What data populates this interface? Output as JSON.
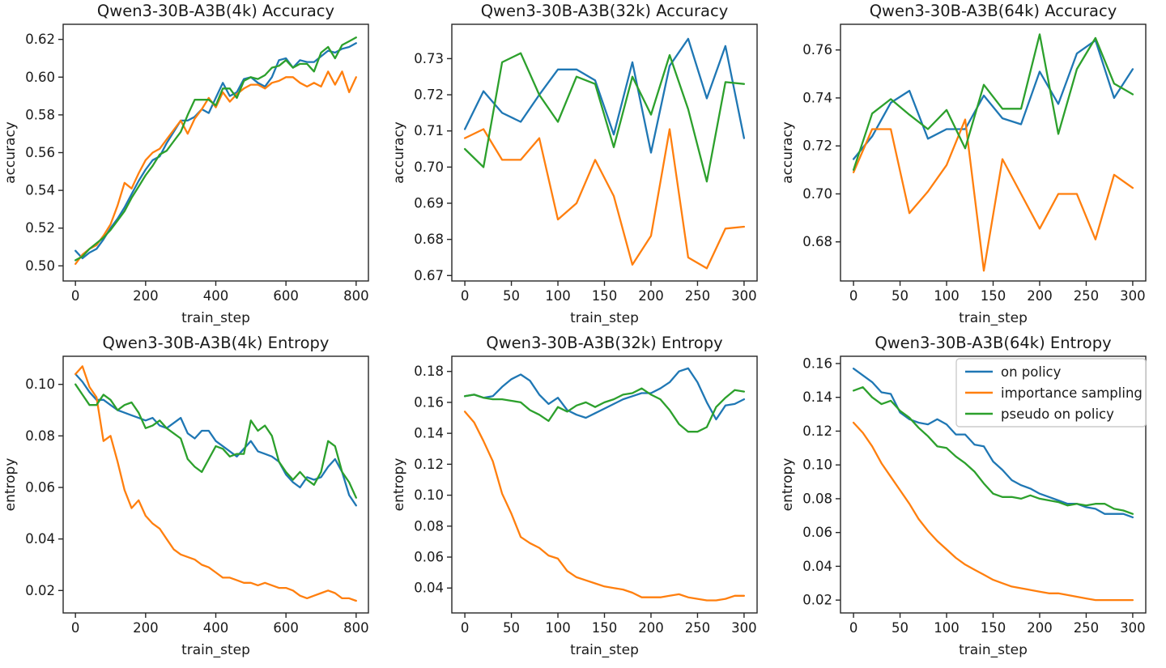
{
  "figure": {
    "background": "#ffffff",
    "text_color": "#1a1a1a",
    "series_colors": {
      "on_policy": "#1f77b4",
      "importance_sampling": "#ff7f0e",
      "pseudo_on_policy": "#2ca02c"
    },
    "legend": {
      "position": "upper-right-of-entropy-64k",
      "items": [
        {
          "label": "on policy",
          "color": "#1f77b4"
        },
        {
          "label": "importance sampling",
          "color": "#ff7f0e"
        },
        {
          "label": "pseudo on policy",
          "color": "#2ca02c"
        }
      ]
    }
  },
  "chart_data": [
    {
      "id": "acc-4k",
      "type": "line",
      "title": "Qwen3-30B-A3B(4k) Accuracy",
      "xlabel": "train_step",
      "ylabel": "accuracy",
      "xlim": [
        -35,
        835
      ],
      "ylim": [
        0.492,
        0.628
      ],
      "xticks": [
        0,
        200,
        400,
        600,
        800
      ],
      "xtick_labels": [
        "0",
        "200",
        "400",
        "600",
        "800"
      ],
      "yticks": [
        0.5,
        0.52,
        0.54,
        0.56,
        0.58,
        0.6,
        0.62
      ],
      "ytick_labels": [
        "0.50",
        "0.52",
        "0.54",
        "0.56",
        "0.58",
        "0.60",
        "0.62"
      ],
      "grid": false,
      "legend": false,
      "x": [
        0,
        20,
        40,
        60,
        80,
        100,
        120,
        140,
        160,
        180,
        200,
        220,
        240,
        260,
        280,
        300,
        320,
        340,
        360,
        380,
        400,
        420,
        440,
        460,
        480,
        500,
        520,
        540,
        560,
        580,
        600,
        620,
        640,
        660,
        680,
        700,
        720,
        740,
        760,
        780,
        800
      ],
      "series": [
        {
          "name": "on policy",
          "color": "#1f77b4",
          "y": [
            0.508,
            0.504,
            0.507,
            0.509,
            0.514,
            0.52,
            0.525,
            0.531,
            0.538,
            0.545,
            0.551,
            0.556,
            0.558,
            0.565,
            0.571,
            0.577,
            0.577,
            0.579,
            0.583,
            0.581,
            0.589,
            0.597,
            0.59,
            0.592,
            0.599,
            0.6,
            0.597,
            0.595,
            0.6,
            0.609,
            0.61,
            0.605,
            0.609,
            0.608,
            0.608,
            0.611,
            0.614,
            0.613,
            0.615,
            0.616,
            0.618
          ]
        },
        {
          "name": "importance sampling",
          "color": "#ff7f0e",
          "y": [
            0.501,
            0.506,
            0.509,
            0.511,
            0.516,
            0.522,
            0.532,
            0.544,
            0.541,
            0.549,
            0.556,
            0.56,
            0.562,
            0.567,
            0.572,
            0.577,
            0.57,
            0.578,
            0.583,
            0.589,
            0.584,
            0.592,
            0.587,
            0.591,
            0.594,
            0.596,
            0.596,
            0.594,
            0.597,
            0.598,
            0.6,
            0.6,
            0.597,
            0.595,
            0.597,
            0.595,
            0.603,
            0.596,
            0.603,
            0.592,
            0.6
          ]
        },
        {
          "name": "pseudo on policy",
          "color": "#2ca02c",
          "y": [
            0.503,
            0.505,
            0.509,
            0.512,
            0.515,
            0.519,
            0.524,
            0.529,
            0.536,
            0.542,
            0.548,
            0.553,
            0.559,
            0.561,
            0.566,
            0.571,
            0.58,
            0.588,
            0.588,
            0.588,
            0.585,
            0.594,
            0.594,
            0.589,
            0.598,
            0.6,
            0.599,
            0.601,
            0.605,
            0.606,
            0.609,
            0.605,
            0.607,
            0.607,
            0.603,
            0.613,
            0.616,
            0.61,
            0.617,
            0.619,
            0.621
          ]
        }
      ]
    },
    {
      "id": "acc-32k",
      "type": "line",
      "title": "Qwen3-30B-A3B(32k) Accuracy",
      "xlabel": "train_step",
      "ylabel": "accuracy",
      "xlim": [
        -14,
        314
      ],
      "ylim": [
        0.6685,
        0.7395
      ],
      "xticks": [
        0,
        50,
        100,
        150,
        200,
        250,
        300
      ],
      "xtick_labels": [
        "0",
        "50",
        "100",
        "150",
        "200",
        "250",
        "300"
      ],
      "yticks": [
        0.67,
        0.68,
        0.69,
        0.7,
        0.71,
        0.72,
        0.73
      ],
      "ytick_labels": [
        "0.67",
        "0.68",
        "0.69",
        "0.70",
        "0.71",
        "0.72",
        "0.73"
      ],
      "grid": false,
      "legend": false,
      "x": [
        0,
        20,
        40,
        60,
        80,
        100,
        120,
        140,
        160,
        180,
        200,
        220,
        240,
        260,
        280,
        300
      ],
      "series": [
        {
          "name": "on policy",
          "color": "#1f77b4",
          "y": [
            0.7105,
            0.721,
            0.715,
            0.7125,
            0.72,
            0.727,
            0.727,
            0.724,
            0.709,
            0.729,
            0.704,
            0.728,
            0.7355,
            0.719,
            0.7335,
            0.708
          ]
        },
        {
          "name": "importance sampling",
          "color": "#ff7f0e",
          "y": [
            0.708,
            0.7105,
            0.702,
            0.702,
            0.708,
            0.6855,
            0.69,
            0.702,
            0.692,
            0.673,
            0.681,
            0.7105,
            0.675,
            0.672,
            0.683,
            0.6835
          ]
        },
        {
          "name": "pseudo on policy",
          "color": "#2ca02c",
          "y": [
            0.705,
            0.7,
            0.729,
            0.7315,
            0.72,
            0.7125,
            0.725,
            0.723,
            0.7055,
            0.725,
            0.7145,
            0.731,
            0.716,
            0.696,
            0.7235,
            0.723
          ]
        }
      ]
    },
    {
      "id": "acc-64k",
      "type": "line",
      "title": "Qwen3-30B-A3B(64k) Accuracy",
      "xlabel": "train_step",
      "ylabel": "accuracy",
      "xlim": [
        -14,
        314
      ],
      "ylim": [
        0.6637,
        0.7707
      ],
      "xticks": [
        0,
        50,
        100,
        150,
        200,
        250,
        300
      ],
      "xtick_labels": [
        "0",
        "50",
        "100",
        "150",
        "200",
        "250",
        "300"
      ],
      "yticks": [
        0.68,
        0.7,
        0.72,
        0.74,
        0.76
      ],
      "ytick_labels": [
        "0.68",
        "0.70",
        "0.72",
        "0.74",
        "0.76"
      ],
      "grid": false,
      "legend": false,
      "x": [
        0,
        20,
        40,
        60,
        80,
        100,
        120,
        140,
        160,
        180,
        200,
        220,
        240,
        260,
        280,
        300
      ],
      "series": [
        {
          "name": "on policy",
          "color": "#1f77b4",
          "y": [
            0.7145,
            0.724,
            0.738,
            0.743,
            0.723,
            0.727,
            0.727,
            0.741,
            0.7315,
            0.729,
            0.751,
            0.7375,
            0.7585,
            0.764,
            0.74,
            0.752
          ]
        },
        {
          "name": "importance sampling",
          "color": "#ff7f0e",
          "y": [
            0.709,
            0.727,
            0.727,
            0.692,
            0.701,
            0.712,
            0.731,
            0.668,
            0.7145,
            0.7,
            0.6855,
            0.7,
            0.7,
            0.681,
            0.708,
            0.7025
          ]
        },
        {
          "name": "pseudo on policy",
          "color": "#2ca02c",
          "y": [
            0.71,
            0.7335,
            0.7395,
            0.733,
            0.727,
            0.735,
            0.719,
            0.7455,
            0.7355,
            0.7355,
            0.7665,
            0.725,
            0.752,
            0.765,
            0.746,
            0.7415
          ]
        }
      ]
    },
    {
      "id": "ent-4k",
      "type": "line",
      "title": "Qwen3-30B-A3B(4k) Entropy",
      "xlabel": "train_step",
      "ylabel": "entropy",
      "xlim": [
        -35,
        835
      ],
      "ylim": [
        0.0113,
        0.1109
      ],
      "xticks": [
        0,
        200,
        400,
        600,
        800
      ],
      "xtick_labels": [
        "0",
        "200",
        "400",
        "600",
        "800"
      ],
      "yticks": [
        0.02,
        0.04,
        0.06,
        0.08,
        0.1
      ],
      "ytick_labels": [
        "0.02",
        "0.04",
        "0.06",
        "0.08",
        "0.10"
      ],
      "grid": false,
      "legend": false,
      "x": [
        0,
        20,
        40,
        60,
        80,
        100,
        120,
        140,
        160,
        180,
        200,
        220,
        240,
        260,
        280,
        300,
        320,
        340,
        360,
        380,
        400,
        420,
        440,
        460,
        480,
        500,
        520,
        540,
        560,
        580,
        600,
        620,
        640,
        660,
        680,
        700,
        720,
        740,
        760,
        780,
        800
      ],
      "series": [
        {
          "name": "on policy",
          "color": "#1f77b4",
          "y": [
            0.104,
            0.101,
            0.097,
            0.094,
            0.094,
            0.092,
            0.09,
            0.089,
            0.088,
            0.087,
            0.086,
            0.087,
            0.084,
            0.083,
            0.085,
            0.087,
            0.081,
            0.079,
            0.082,
            0.082,
            0.078,
            0.076,
            0.074,
            0.072,
            0.075,
            0.078,
            0.074,
            0.073,
            0.072,
            0.07,
            0.065,
            0.062,
            0.06,
            0.064,
            0.063,
            0.064,
            0.068,
            0.071,
            0.066,
            0.057,
            0.053
          ]
        },
        {
          "name": "importance sampling",
          "color": "#ff7f0e",
          "y": [
            0.104,
            0.107,
            0.099,
            0.095,
            0.078,
            0.08,
            0.07,
            0.059,
            0.052,
            0.055,
            0.049,
            0.046,
            0.044,
            0.04,
            0.036,
            0.034,
            0.033,
            0.032,
            0.03,
            0.029,
            0.027,
            0.025,
            0.025,
            0.024,
            0.023,
            0.023,
            0.022,
            0.023,
            0.022,
            0.021,
            0.021,
            0.02,
            0.018,
            0.017,
            0.018,
            0.019,
            0.02,
            0.019,
            0.017,
            0.017,
            0.016
          ]
        },
        {
          "name": "pseudo on policy",
          "color": "#2ca02c",
          "y": [
            0.1,
            0.096,
            0.092,
            0.092,
            0.096,
            0.094,
            0.09,
            0.092,
            0.093,
            0.089,
            0.083,
            0.084,
            0.086,
            0.083,
            0.081,
            0.079,
            0.071,
            0.068,
            0.066,
            0.071,
            0.076,
            0.075,
            0.072,
            0.073,
            0.073,
            0.086,
            0.082,
            0.084,
            0.08,
            0.07,
            0.066,
            0.063,
            0.066,
            0.063,
            0.061,
            0.066,
            0.078,
            0.076,
            0.066,
            0.062,
            0.056
          ]
        }
      ]
    },
    {
      "id": "ent-32k",
      "type": "line",
      "title": "Qwen3-30B-A3B(32k) Entropy",
      "xlabel": "train_step",
      "ylabel": "entropy",
      "xlim": [
        -14,
        314
      ],
      "ylim": [
        0.0239,
        0.1898
      ],
      "xticks": [
        0,
        50,
        100,
        150,
        200,
        250,
        300
      ],
      "xtick_labels": [
        "0",
        "50",
        "100",
        "150",
        "200",
        "250",
        "300"
      ],
      "yticks": [
        0.04,
        0.06,
        0.08,
        0.1,
        0.12,
        0.14,
        0.16,
        0.18
      ],
      "ytick_labels": [
        "0.04",
        "0.06",
        "0.08",
        "0.10",
        "0.12",
        "0.14",
        "0.16",
        "0.18"
      ],
      "grid": false,
      "legend": false,
      "x": [
        0,
        10,
        20,
        30,
        40,
        50,
        60,
        70,
        80,
        90,
        100,
        110,
        120,
        130,
        140,
        150,
        160,
        170,
        180,
        190,
        200,
        210,
        220,
        230,
        240,
        250,
        260,
        270,
        280,
        290,
        300
      ],
      "series": [
        {
          "name": "on policy",
          "color": "#1f77b4",
          "y": [
            0.164,
            0.165,
            0.163,
            0.164,
            0.17,
            0.175,
            0.178,
            0.174,
            0.165,
            0.159,
            0.163,
            0.155,
            0.152,
            0.15,
            0.153,
            0.156,
            0.159,
            0.162,
            0.164,
            0.166,
            0.166,
            0.169,
            0.173,
            0.18,
            0.182,
            0.173,
            0.16,
            0.149,
            0.158,
            0.159,
            0.162
          ]
        },
        {
          "name": "importance sampling",
          "color": "#ff7f0e",
          "y": [
            0.154,
            0.147,
            0.135,
            0.122,
            0.101,
            0.088,
            0.073,
            0.069,
            0.066,
            0.061,
            0.059,
            0.051,
            0.047,
            0.045,
            0.043,
            0.041,
            0.04,
            0.039,
            0.037,
            0.034,
            0.034,
            0.034,
            0.035,
            0.036,
            0.034,
            0.033,
            0.032,
            0.032,
            0.033,
            0.035,
            0.035
          ]
        },
        {
          "name": "pseudo on policy",
          "color": "#2ca02c",
          "y": [
            0.164,
            0.165,
            0.163,
            0.162,
            0.162,
            0.161,
            0.16,
            0.155,
            0.152,
            0.148,
            0.157,
            0.154,
            0.158,
            0.16,
            0.157,
            0.16,
            0.162,
            0.165,
            0.166,
            0.169,
            0.165,
            0.162,
            0.155,
            0.146,
            0.141,
            0.141,
            0.144,
            0.157,
            0.163,
            0.168,
            0.167
          ]
        }
      ]
    },
    {
      "id": "ent-64k",
      "type": "line",
      "title": "Qwen3-30B-A3B(64k) Entropy",
      "xlabel": "train_step",
      "ylabel": "entropy",
      "xlim": [
        -14,
        314
      ],
      "ylim": [
        0.0124,
        0.1643
      ],
      "xticks": [
        0,
        50,
        100,
        150,
        200,
        250,
        300
      ],
      "xtick_labels": [
        "0",
        "50",
        "100",
        "150",
        "200",
        "250",
        "300"
      ],
      "yticks": [
        0.02,
        0.04,
        0.06,
        0.08,
        0.1,
        0.12,
        0.14,
        0.16
      ],
      "ytick_labels": [
        "0.02",
        "0.04",
        "0.06",
        "0.08",
        "0.10",
        "0.12",
        "0.14",
        "0.16"
      ],
      "grid": false,
      "legend": true,
      "x": [
        0,
        10,
        20,
        30,
        40,
        50,
        60,
        70,
        80,
        90,
        100,
        110,
        120,
        130,
        140,
        150,
        160,
        170,
        180,
        190,
        200,
        210,
        220,
        230,
        240,
        250,
        260,
        270,
        280,
        290,
        300
      ],
      "series": [
        {
          "name": "on policy",
          "color": "#1f77b4",
          "y": [
            0.157,
            0.153,
            0.149,
            0.143,
            0.142,
            0.131,
            0.127,
            0.125,
            0.124,
            0.127,
            0.124,
            0.118,
            0.118,
            0.112,
            0.111,
            0.102,
            0.097,
            0.091,
            0.088,
            0.086,
            0.083,
            0.081,
            0.079,
            0.077,
            0.077,
            0.075,
            0.074,
            0.071,
            0.071,
            0.071,
            0.069
          ]
        },
        {
          "name": "importance sampling",
          "color": "#ff7f0e",
          "y": [
            0.125,
            0.119,
            0.111,
            0.101,
            0.093,
            0.085,
            0.077,
            0.068,
            0.061,
            0.055,
            0.05,
            0.045,
            0.041,
            0.038,
            0.035,
            0.032,
            0.03,
            0.028,
            0.027,
            0.026,
            0.025,
            0.024,
            0.024,
            0.023,
            0.022,
            0.021,
            0.02,
            0.02,
            0.02,
            0.02,
            0.02
          ]
        },
        {
          "name": "pseudo on policy",
          "color": "#2ca02c",
          "y": [
            0.144,
            0.146,
            0.14,
            0.136,
            0.138,
            0.132,
            0.128,
            0.122,
            0.117,
            0.111,
            0.11,
            0.105,
            0.101,
            0.096,
            0.089,
            0.083,
            0.081,
            0.081,
            0.08,
            0.082,
            0.08,
            0.079,
            0.078,
            0.076,
            0.077,
            0.076,
            0.077,
            0.077,
            0.074,
            0.073,
            0.071
          ]
        }
      ]
    }
  ]
}
